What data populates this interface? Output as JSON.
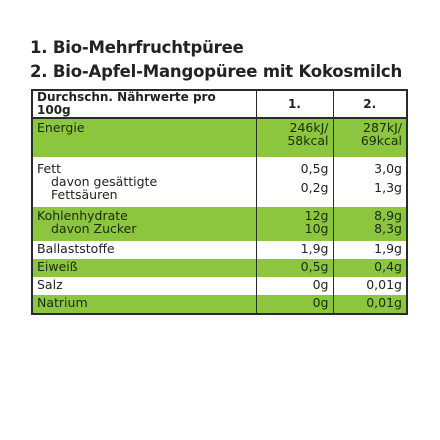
{
  "titles": [
    "1. Bio-Mehrfruchtpüree",
    "2. Bio-Apfel-Mangopüree mit Kokosmilch"
  ],
  "table": {
    "header": {
      "label": "Durchschn. Nährwerte pro 100g",
      "col1": "1.",
      "col2": "2."
    },
    "energie": {
      "label": "Energie",
      "col1_a": "246kJ/",
      "col1_b": "58kcal",
      "col2_a": "287kJ/",
      "col2_b": "69kcal"
    },
    "fett": {
      "label": "Fett",
      "sub_a": "davon gesättigte",
      "sub_b": "Fettsäuren",
      "col1": "0,5g",
      "col1_sub": "0,2g",
      "col2": "3,0g",
      "col2_sub": "1,3g"
    },
    "kohlenhydrate": {
      "label": "Kohlenhydrate",
      "sub": "davon Zucker",
      "col1": "12g",
      "col1_sub": "10g",
      "col2": "8,9g",
      "col2_sub": "8,3g"
    },
    "ballaststoffe": {
      "label": "Ballaststoffe",
      "col1": "1,9g",
      "col2": "1,9g"
    },
    "eiweiss": {
      "label": "Eiweiß",
      "col1": "0,5g",
      "col2": "0,4g"
    },
    "salz": {
      "label": "Salz",
      "col1": "0g",
      "col2": "0,01g"
    },
    "natrium": {
      "label": "Natrium",
      "col1": "0g",
      "col2": "0,01g"
    }
  },
  "colors": {
    "green_row": "#8cc63f",
    "border": "#2b2b2b",
    "text": "#222222"
  }
}
